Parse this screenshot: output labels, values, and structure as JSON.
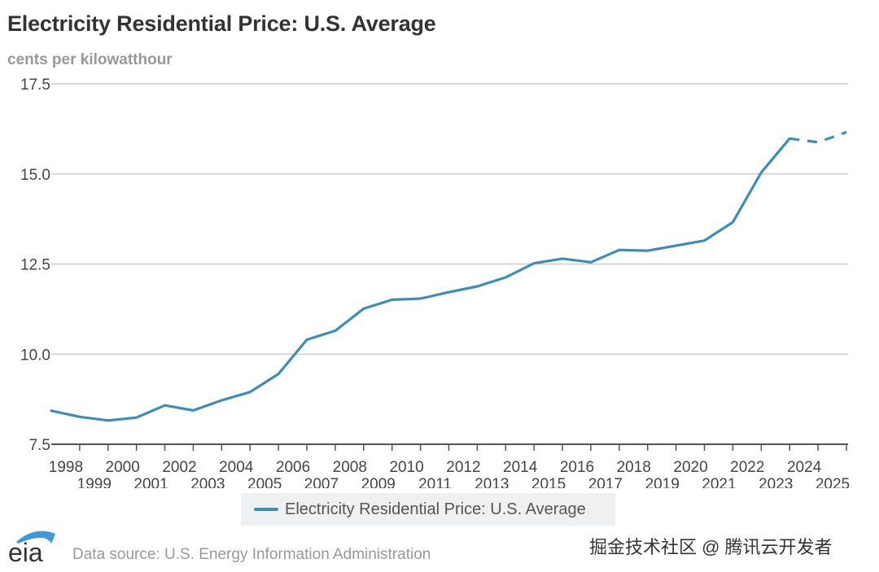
{
  "header": {
    "title": "Electricity Residential Price: U.S. Average",
    "units": "cents per kilowatthour"
  },
  "legend": {
    "label": "Electricity Residential Price: U.S. Average"
  },
  "footer": {
    "logo_text": "eia",
    "source": "Data source: U.S. Energy Information Administration",
    "watermark": "掘金技术社区 @ 腾讯云开发者"
  },
  "colors": {
    "series": "#3c8db8",
    "grid": "#cccccc",
    "axis": "#555555",
    "text": "#333333"
  },
  "chart_data": {
    "type": "line",
    "title": "Electricity Residential Price: U.S. Average",
    "ylabel": "cents per kilowatthour",
    "xlabel": "",
    "ylim": [
      7.5,
      17.5
    ],
    "xlim": [
      1997,
      2025
    ],
    "yticks": [
      7.5,
      10.0,
      12.5,
      15.0,
      17.5
    ],
    "ytick_labels": [
      "7.5",
      "10.0",
      "12.5",
      "15.0",
      "17.5"
    ],
    "xtick_labels": [
      "1998",
      "1999",
      "2000",
      "2001",
      "2002",
      "2003",
      "2004",
      "2005",
      "2006",
      "2007",
      "2008",
      "2009",
      "2010",
      "2011",
      "2012",
      "2013",
      "2014",
      "2015",
      "2016",
      "2017",
      "2018",
      "2019",
      "2020",
      "2021",
      "2022",
      "2023",
      "2024",
      "2025"
    ],
    "grid": true,
    "legend_position": "bottom-center",
    "series": [
      {
        "name": "Electricity Residential Price: U.S. Average",
        "x": [
          1997,
          1998,
          1999,
          2000,
          2001,
          2002,
          2003,
          2004,
          2005,
          2006,
          2007,
          2008,
          2009,
          2010,
          2011,
          2012,
          2013,
          2014,
          2015,
          2016,
          2017,
          2018,
          2019,
          2020,
          2021,
          2022,
          2023,
          2024,
          2025
        ],
        "values": [
          8.43,
          8.26,
          8.16,
          8.24,
          8.58,
          8.44,
          8.72,
          8.95,
          9.45,
          10.4,
          10.65,
          11.26,
          11.51,
          11.54,
          11.72,
          11.88,
          12.13,
          12.52,
          12.65,
          12.55,
          12.89,
          12.87,
          13.01,
          13.15,
          13.66,
          15.04,
          15.98,
          15.88,
          16.16
        ],
        "forecast_from": 2023
      }
    ]
  }
}
